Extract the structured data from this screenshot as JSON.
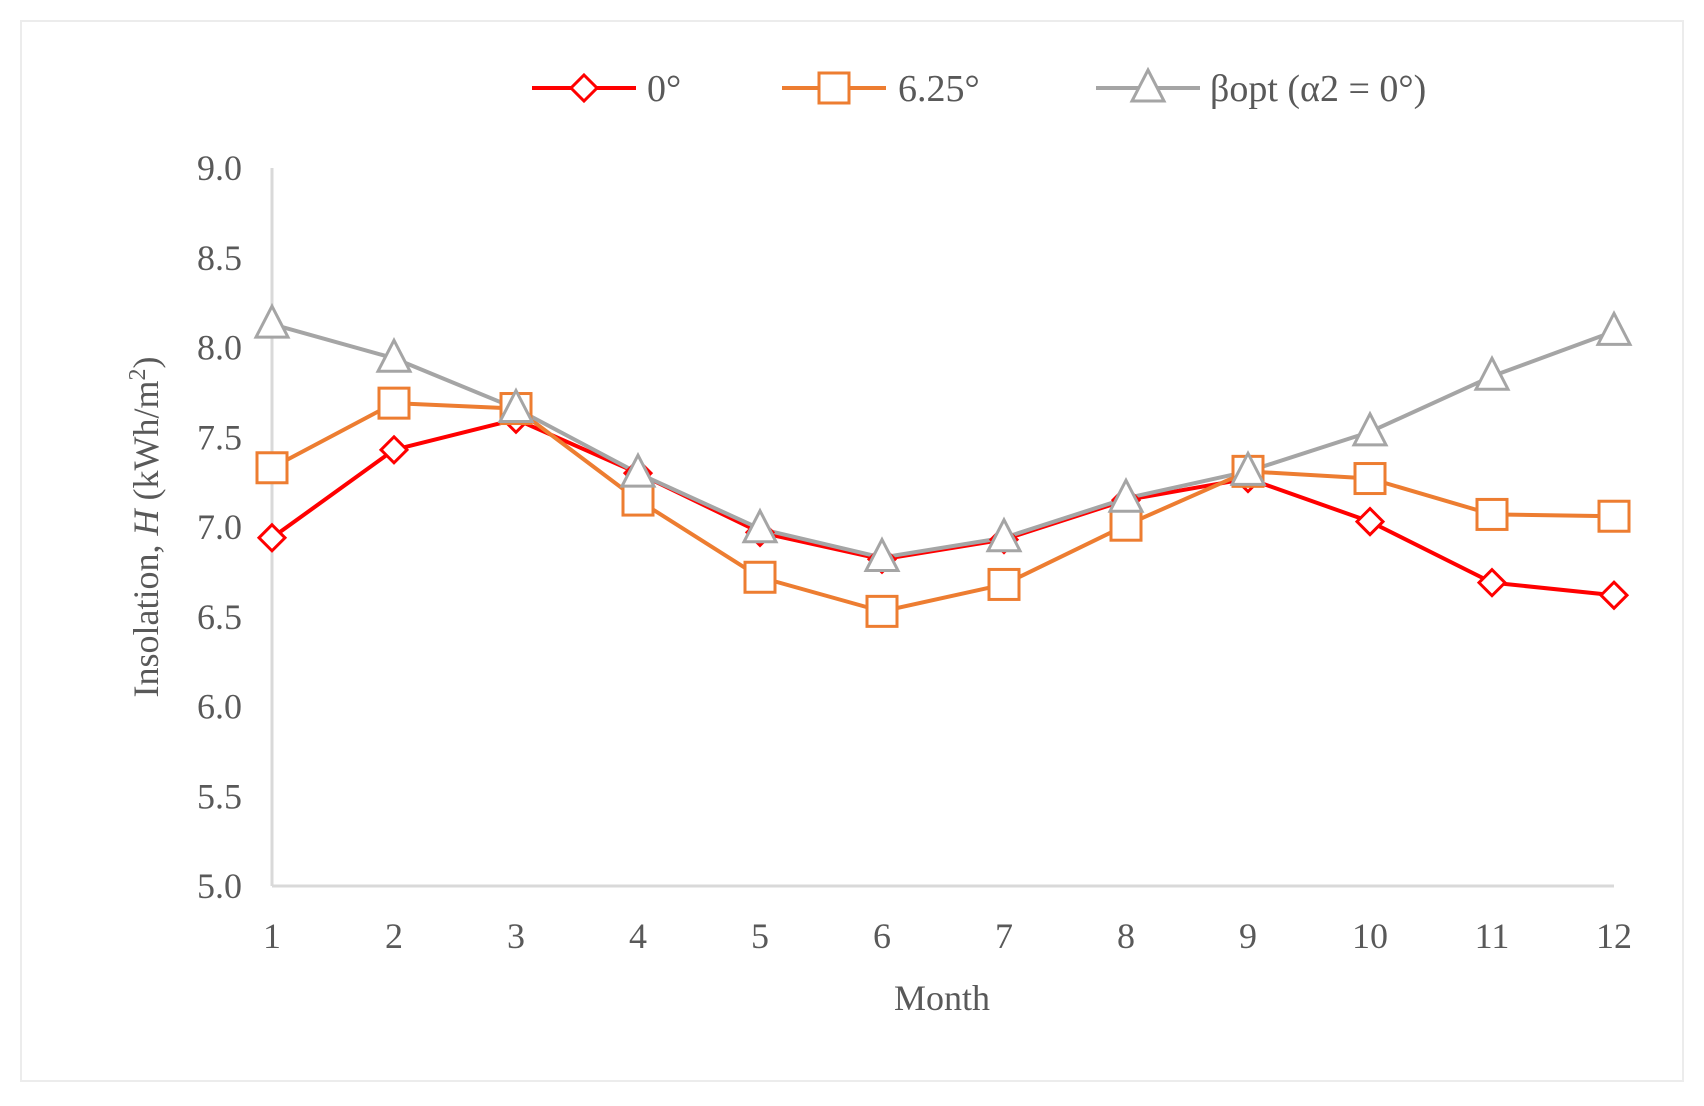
{
  "chart_data": {
    "type": "line",
    "title": "",
    "xlabel": "Month",
    "ylabel_main": "Insolation, ",
    "ylabel_symbol": "H",
    "ylabel_unit_prefix": " (kWh/m",
    "ylabel_unit_sup": "2",
    "ylabel_unit_suffix": ")",
    "ylim": [
      5.0,
      9.0
    ],
    "y_ticks": [
      5.0,
      5.5,
      6.0,
      6.5,
      7.0,
      7.5,
      8.0,
      8.5,
      9.0
    ],
    "categories": [
      1,
      2,
      3,
      4,
      5,
      6,
      7,
      8,
      9,
      10,
      11,
      12
    ],
    "grid": false,
    "legend_position": "top",
    "series": [
      {
        "name": "0°",
        "color": "#ff0000",
        "marker": "diamond",
        "values": [
          6.94,
          7.43,
          7.6,
          7.3,
          6.97,
          6.82,
          6.93,
          7.15,
          7.27,
          7.03,
          6.69,
          6.62
        ]
      },
      {
        "name": "6.25°",
        "color": "#ed7d31",
        "marker": "square",
        "values": [
          7.33,
          7.69,
          7.66,
          7.15,
          6.72,
          6.53,
          6.68,
          7.01,
          7.31,
          7.27,
          7.07,
          7.06
        ]
      },
      {
        "name": "βopt (α2 = 0°)",
        "color": "#a5a5a5",
        "marker": "triangle",
        "values": [
          8.13,
          7.94,
          7.66,
          7.3,
          6.99,
          6.83,
          6.94,
          7.16,
          7.31,
          7.53,
          7.84,
          8.09
        ]
      }
    ]
  }
}
